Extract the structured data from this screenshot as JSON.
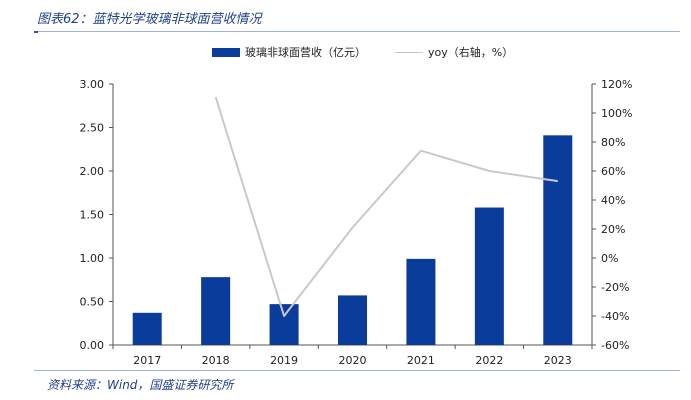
{
  "header": {
    "title": "图表62：蓝特光学玻璃非球面营收情况"
  },
  "footer": {
    "source": "资料来源：Wind，国盛证券研究所"
  },
  "colors": {
    "bar": "#0a3c9c",
    "line": "#c9c9c9",
    "title": "#1f3f8f"
  },
  "chart_data": {
    "type": "bar",
    "categories": [
      "2017",
      "2018",
      "2019",
      "2020",
      "2021",
      "2022",
      "2023"
    ],
    "series": [
      {
        "name": "玻璃非球面营收（亿元）",
        "type": "bar",
        "axis": "left",
        "values": [
          0.37,
          0.78,
          0.47,
          0.57,
          0.99,
          1.58,
          2.41
        ]
      },
      {
        "name": "yoy（右轴，%）",
        "type": "line",
        "axis": "right",
        "values": [
          null,
          111,
          -40,
          21,
          74,
          60,
          53
        ]
      }
    ],
    "y_left": {
      "min": 0,
      "max": 3,
      "ticks": [
        "0.00",
        "0.50",
        "1.00",
        "1.50",
        "2.00",
        "2.50",
        "3.00"
      ]
    },
    "y_right": {
      "min": -60,
      "max": 120,
      "ticks": [
        "-60%",
        "-40%",
        "-20%",
        "0%",
        "20%",
        "40%",
        "60%",
        "80%",
        "100%",
        "120%"
      ]
    },
    "legend_position": "top-center",
    "grid": false
  }
}
